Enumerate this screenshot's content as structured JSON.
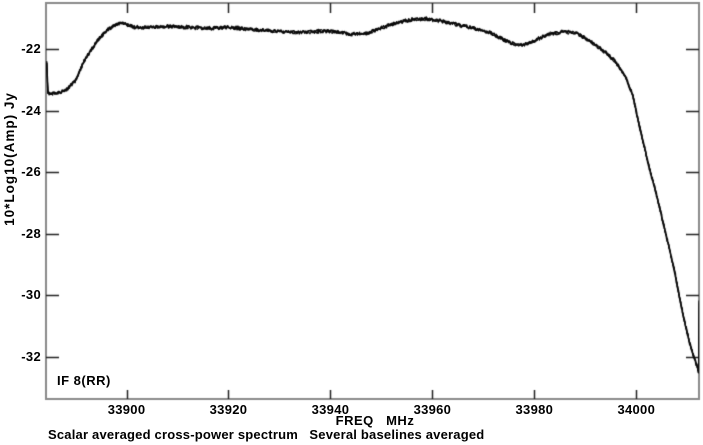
{
  "chart_data": {
    "type": "line",
    "title": "",
    "xlabel": "FREQ   MHz",
    "ylabel": "10*Log10(Amp) Jy",
    "caption": "Scalar averaged cross-power spectrum   Several baselines averaged",
    "annotations": [
      {
        "text": "IF 8(RR)",
        "position": "bottom-left-inside"
      }
    ],
    "x_ticks": [
      33900,
      33920,
      33940,
      33960,
      33980,
      34000
    ],
    "y_ticks": [
      -22,
      -24,
      -26,
      -28,
      -30,
      -32
    ],
    "xlim": [
      33884.2,
      34012.3
    ],
    "ylim": [
      -33.36,
      -20.51
    ],
    "grid": false,
    "legend": "none",
    "colors": {
      "curve": "#0a0a0a",
      "frame": "#8a8a8a",
      "ticks": "#222222",
      "text": "#000000",
      "background": "#ffffff"
    },
    "noise_db": 0.055,
    "series": [
      {
        "name": "scalar averaged cross-power spectrum IF 8(RR)",
        "x_unit": "MHz",
        "y_unit": "10*Log10(Amp) Jy",
        "points": [
          [
            33884.35,
            -22.42
          ],
          [
            33884.5,
            -23.1
          ],
          [
            33884.6,
            -23.43
          ],
          [
            33885.5,
            -23.45
          ],
          [
            33887.0,
            -23.42
          ],
          [
            33888.5,
            -23.28
          ],
          [
            33889.9,
            -23.05
          ],
          [
            33890.9,
            -22.68
          ],
          [
            33891.9,
            -22.32
          ],
          [
            33893.2,
            -22.0
          ],
          [
            33894.4,
            -21.72
          ],
          [
            33895.8,
            -21.45
          ],
          [
            33896.8,
            -21.32
          ],
          [
            33898.3,
            -21.16
          ],
          [
            33900.0,
            -21.2
          ],
          [
            33901.7,
            -21.3
          ],
          [
            33904,
            -21.3
          ],
          [
            33908,
            -21.27
          ],
          [
            33912,
            -21.3
          ],
          [
            33916,
            -21.33
          ],
          [
            33920,
            -21.3
          ],
          [
            33924,
            -21.36
          ],
          [
            33928,
            -21.4
          ],
          [
            33932,
            -21.46
          ],
          [
            33936,
            -21.44
          ],
          [
            33940,
            -21.42
          ],
          [
            33944,
            -21.52
          ],
          [
            33947,
            -21.5
          ],
          [
            33950,
            -21.32
          ],
          [
            33953,
            -21.15
          ],
          [
            33956,
            -21.05
          ],
          [
            33959,
            -21.02
          ],
          [
            33962,
            -21.1
          ],
          [
            33965,
            -21.22
          ],
          [
            33968,
            -21.32
          ],
          [
            33971,
            -21.45
          ],
          [
            33974,
            -21.7
          ],
          [
            33976.5,
            -21.88
          ],
          [
            33978.5,
            -21.85
          ],
          [
            33981,
            -21.65
          ],
          [
            33983.5,
            -21.5
          ],
          [
            33986,
            -21.44
          ],
          [
            33988,
            -21.48
          ],
          [
            33990,
            -21.65
          ],
          [
            33992,
            -21.88
          ],
          [
            33994,
            -22.12
          ],
          [
            33996,
            -22.42
          ],
          [
            33998,
            -22.95
          ],
          [
            33999.3,
            -23.5
          ],
          [
            34000.6,
            -24.5
          ],
          [
            34001.6,
            -25.2
          ],
          [
            34002.6,
            -25.9
          ],
          [
            34003.6,
            -26.5
          ],
          [
            34004.5,
            -27.1
          ],
          [
            34005.5,
            -27.8
          ],
          [
            34006.5,
            -28.5
          ],
          [
            34007.5,
            -29.2
          ],
          [
            34008.4,
            -30.0
          ],
          [
            34009.4,
            -30.8
          ],
          [
            34010.4,
            -31.5
          ],
          [
            34011.2,
            -31.95
          ],
          [
            34011.8,
            -32.25
          ],
          [
            34012.1,
            -32.4
          ],
          [
            34012.25,
            -32.5
          ],
          [
            34012.35,
            -30.2
          ]
        ]
      }
    ]
  }
}
